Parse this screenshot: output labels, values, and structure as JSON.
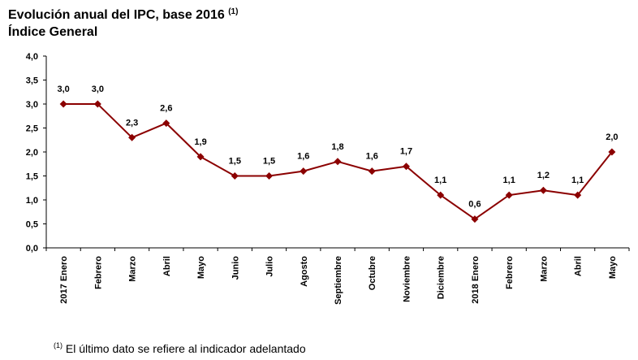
{
  "header": {
    "title": "Evolución anual del IPC, base 2016",
    "title_note": "(1)",
    "subtitle": "Índice General"
  },
  "footnote": {
    "mark": "(1)",
    "text": "El último dato se refiere al indicador adelantado"
  },
  "chart_data": {
    "type": "line",
    "title": "Evolución anual del IPC, base 2016",
    "subtitle": "Índice General",
    "categories": [
      "2017 Enero",
      "Febrero",
      "Marzo",
      "Abril",
      "Mayo",
      "Junio",
      "Julio",
      "Agosto",
      "Septiembre",
      "Octubre",
      "Noviembre",
      "Diciembre",
      "2018 Enero",
      "Febrero",
      "Marzo",
      "Abril",
      "Mayo"
    ],
    "series": [
      {
        "values": [
          3.0,
          3.0,
          2.3,
          2.6,
          1.9,
          1.5,
          1.5,
          1.6,
          1.8,
          1.6,
          1.7,
          1.1,
          0.6,
          1.1,
          1.2,
          1.1,
          2.0
        ],
        "labels": [
          "3,0",
          "3,0",
          "2,3",
          "2,6",
          "1,9",
          "1,5",
          "1,5",
          "1,6",
          "1,8",
          "1,6",
          "1,7",
          "1,1",
          "0,6",
          "1,1",
          "1,2",
          "1,1",
          "2,0"
        ],
        "color": "#8B0000"
      }
    ],
    "ylim": [
      0,
      4
    ],
    "yticks": [
      "0,0",
      "0,5",
      "1,0",
      "1,5",
      "2,0",
      "2,5",
      "3,0",
      "3,5",
      "4,0"
    ],
    "xlabel": "",
    "ylabel": "",
    "grid": false,
    "legend": "none"
  }
}
